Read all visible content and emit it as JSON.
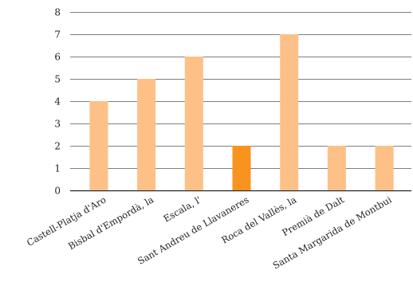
{
  "chart_data": {
    "type": "bar",
    "categories": [
      "Castell-Platja d'Aro",
      "Bisbal d'Empordà, la",
      "Escala, l'",
      "Sant Andreu de Llavaneres",
      "Roca del Vallès, la",
      "Premià de Dalt",
      "Santa Margarida de Montbui"
    ],
    "values": [
      4,
      5,
      6,
      2,
      7,
      2,
      2
    ],
    "highlight_index": 3,
    "ylim": [
      0,
      8
    ],
    "yticks": [
      "0",
      "1",
      "2",
      "3",
      "4",
      "5",
      "6",
      "7",
      "8"
    ],
    "grid": true,
    "title": "",
    "xlabel": "",
    "ylabel": "",
    "colors": {
      "bar": "#fdc086",
      "highlight": "#f7931e",
      "grid": "#555555",
      "axis": "#222222"
    }
  }
}
